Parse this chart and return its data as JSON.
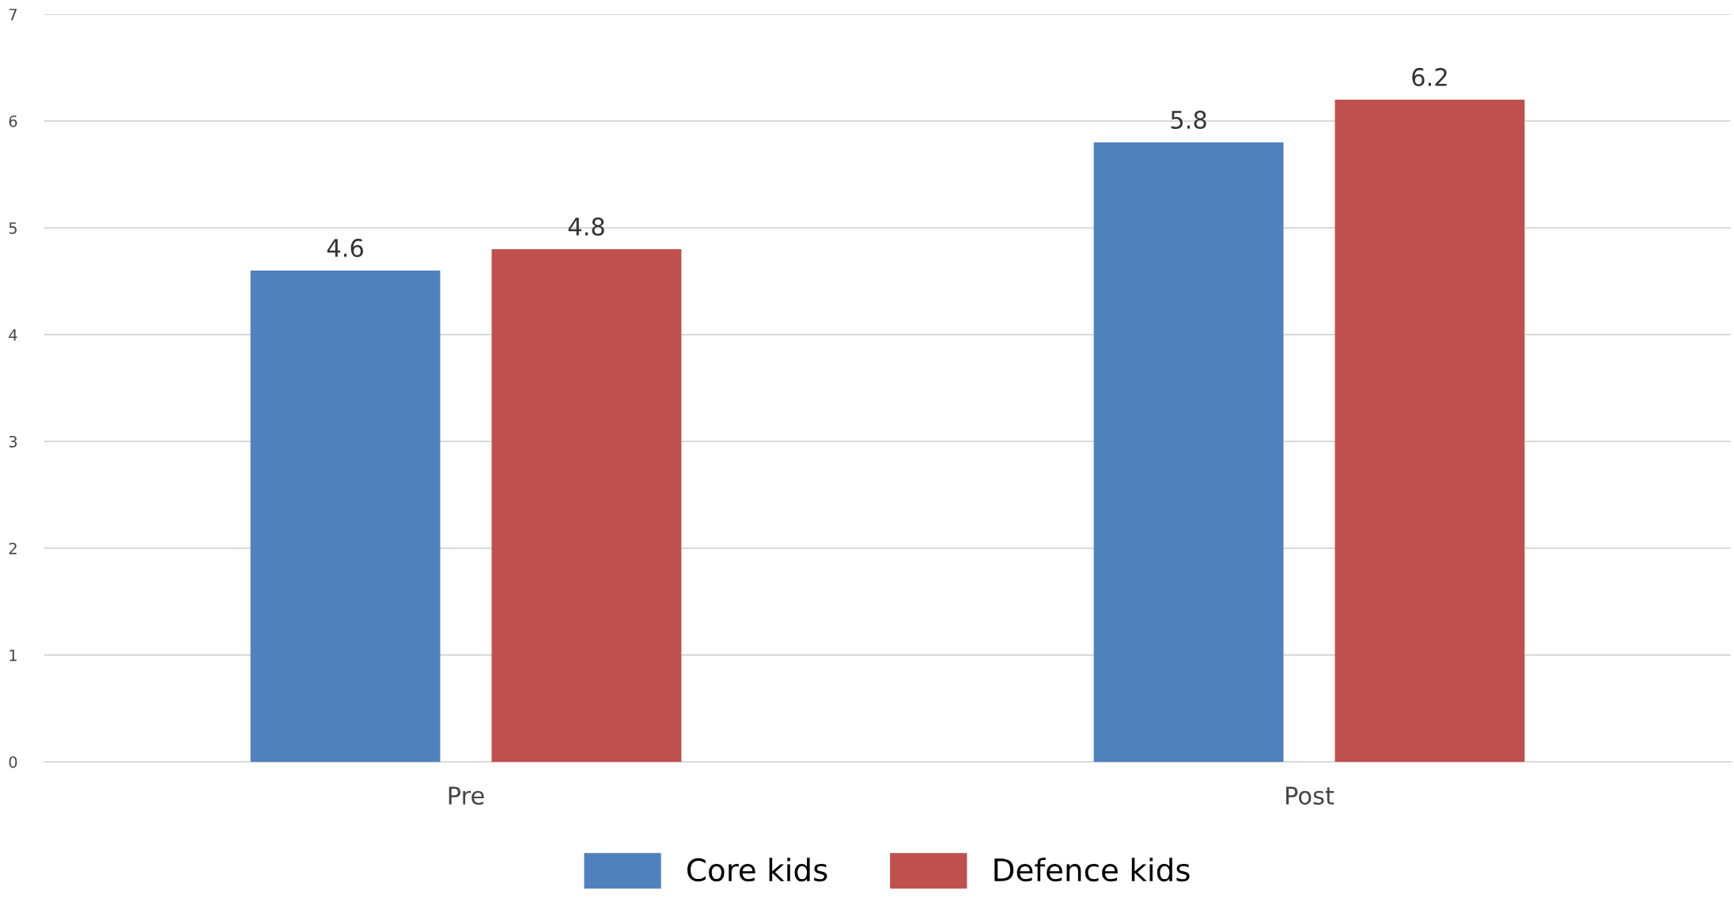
{
  "chart_data": {
    "type": "bar",
    "categories": [
      "Pre",
      "Post"
    ],
    "series": [
      {
        "name": "Core kids",
        "color": "#4f81bd",
        "values": [
          4.6,
          5.8
        ]
      },
      {
        "name": "Defence kids",
        "color": "#c0504d",
        "values": [
          4.8,
          6.2
        ]
      }
    ],
    "ylim": [
      0,
      7
    ],
    "yticks": [
      0,
      1,
      2,
      3,
      4,
      5,
      6,
      7
    ],
    "grid": "y",
    "legend": "bottom",
    "data_labels": true
  }
}
